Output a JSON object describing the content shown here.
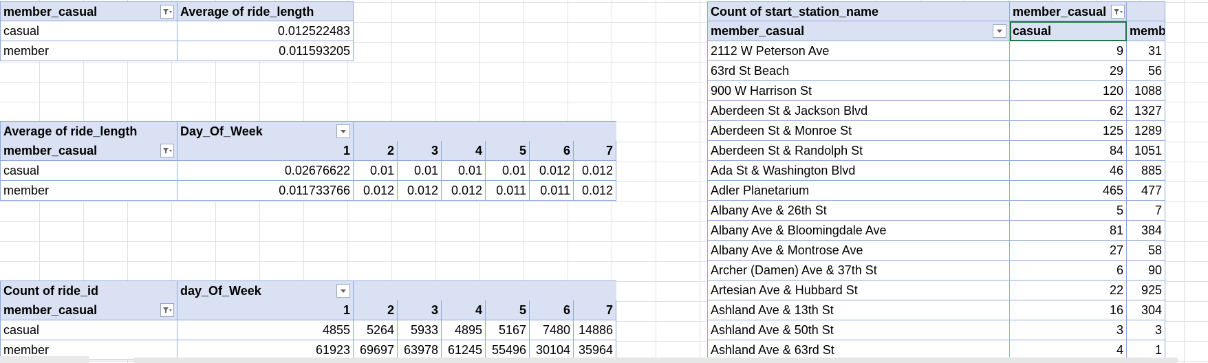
{
  "pivot_member_avg": {
    "row_label_header": "member_casual",
    "value_header": "Average of ride_length",
    "rows": [
      {
        "label": "casual",
        "value": "0.012522483"
      },
      {
        "label": "member",
        "value": "0.011593205"
      }
    ]
  },
  "pivot_avg_by_day": {
    "title": "Average of ride_length",
    "column_field": "Day_Of_Week",
    "row_label_header": "member_casual",
    "days": [
      "1",
      "2",
      "3",
      "4",
      "5",
      "6",
      "7"
    ],
    "rows": [
      {
        "label": "casual",
        "values": [
          "0.02676622",
          "0.01",
          "0.01",
          "0.01",
          "0.01",
          "0.012",
          "0.012"
        ]
      },
      {
        "label": "member",
        "values": [
          "0.011733766",
          "0.012",
          "0.012",
          "0.012",
          "0.011",
          "0.011",
          "0.012"
        ]
      }
    ]
  },
  "pivot_count_by_day": {
    "title": "Count of ride_id",
    "column_field": "day_Of_Week",
    "row_label_header": "member_casual",
    "days": [
      "1",
      "2",
      "3",
      "4",
      "5",
      "6",
      "7"
    ],
    "rows": [
      {
        "label": "casual",
        "values": [
          "4855",
          "5264",
          "5933",
          "4895",
          "5167",
          "7480",
          "14886"
        ]
      },
      {
        "label": "member",
        "values": [
          "61923",
          "69697",
          "63978",
          "61245",
          "55496",
          "30104",
          "35964"
        ]
      }
    ]
  },
  "pivot_station_count": {
    "title": "Count of start_station_name",
    "column_field": "member_casual",
    "row_label_header": "member_casual",
    "col_casual": "casual",
    "col_member": "member",
    "rows": [
      {
        "station": "2112 W Peterson Ave",
        "casual": "9",
        "member": "31"
      },
      {
        "station": "63rd St Beach",
        "casual": "29",
        "member": "56"
      },
      {
        "station": "900 W Harrison St",
        "casual": "120",
        "member": "1088"
      },
      {
        "station": "Aberdeen St & Jackson Blvd",
        "casual": "62",
        "member": "1327"
      },
      {
        "station": "Aberdeen St & Monroe St",
        "casual": "125",
        "member": "1289"
      },
      {
        "station": "Aberdeen St & Randolph St",
        "casual": "84",
        "member": "1051"
      },
      {
        "station": "Ada St & Washington Blvd",
        "casual": "46",
        "member": "885"
      },
      {
        "station": "Adler Planetarium",
        "casual": "465",
        "member": "477"
      },
      {
        "station": "Albany Ave & 26th St",
        "casual": "5",
        "member": "7"
      },
      {
        "station": "Albany Ave & Bloomingdale Ave",
        "casual": "81",
        "member": "384"
      },
      {
        "station": "Albany Ave & Montrose Ave",
        "casual": "27",
        "member": "58"
      },
      {
        "station": "Archer (Damen) Ave & 37th St",
        "casual": "6",
        "member": "90"
      },
      {
        "station": "Artesian Ave & Hubbard St",
        "casual": "22",
        "member": "925"
      },
      {
        "station": "Ashland Ave & 13th St",
        "casual": "16",
        "member": "304"
      },
      {
        "station": "Ashland Ave & 50th St",
        "casual": "3",
        "member": "3"
      },
      {
        "station": "Ashland Ave & 63rd St",
        "casual": "4",
        "member": "1"
      }
    ]
  },
  "icons": {
    "filter_active": "filter-funnel-icon",
    "dropdown": "dropdown-arrow-icon"
  },
  "colors": {
    "header_fill": "#d9e1f2",
    "border": "#8ea9db",
    "gridline": "#e1e1e1",
    "selection": "#217346"
  }
}
